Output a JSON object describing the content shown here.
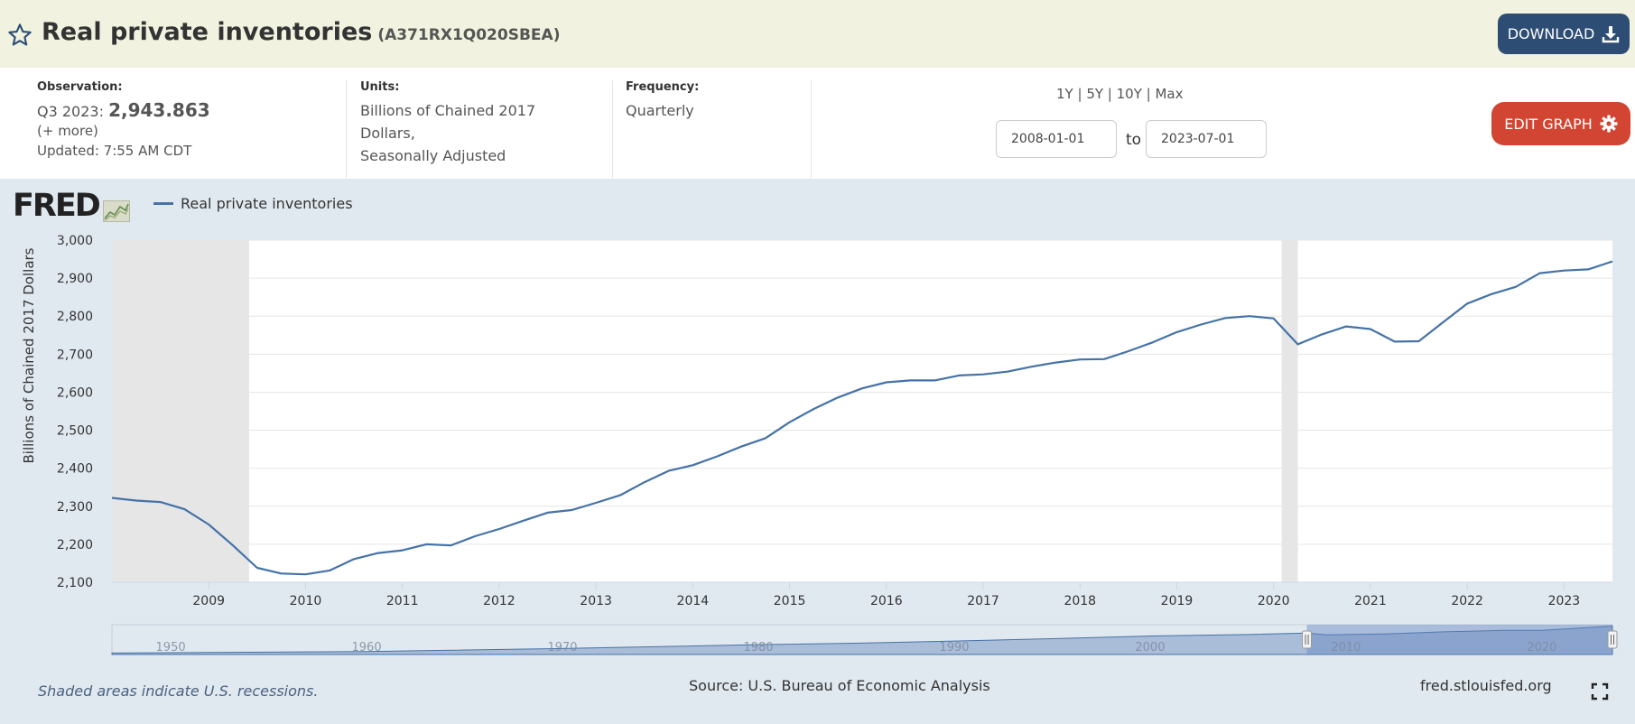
{
  "header": {
    "title": "Real private inventories",
    "series_id": "(A371RX1Q020SBEA)",
    "download_label": "DOWNLOAD",
    "star_icon": "star-outline-icon",
    "download_icon": "download-icon"
  },
  "info": {
    "observation_label": "Observation:",
    "observation_period": "Q3 2023:",
    "observation_value": "2,943.863",
    "more_label": "(+ more)",
    "updated": "Updated: 7:55 AM CDT",
    "units_label": "Units:",
    "units_line1": "Billions of Chained 2017",
    "units_line2": "Dollars,",
    "units_line3": "Seasonally Adjusted",
    "frequency_label": "Frequency:",
    "frequency_value": "Quarterly",
    "ranges": [
      "1Y",
      "5Y",
      "10Y",
      "Max"
    ],
    "start_date": "2008-01-01",
    "to_label": "to",
    "end_date": "2023-07-01",
    "edit_label": "EDIT GRAPH",
    "edit_icon": "gear-icon"
  },
  "chart_header": {
    "logo_text": "FRED",
    "legend_label": "Real private inventories"
  },
  "chart_data": {
    "type": "line",
    "ylabel": "Billions of Chained 2017 Dollars",
    "ylim": [
      2100,
      3000
    ],
    "yticks": [
      2100,
      2200,
      2300,
      2400,
      2500,
      2600,
      2700,
      2800,
      2900,
      3000
    ],
    "ytick_labels": [
      "2,100",
      "2,200",
      "2,300",
      "2,400",
      "2,500",
      "2,600",
      "2,700",
      "2,800",
      "2,900",
      "3,000"
    ],
    "xlim": [
      "2008-01-01",
      "2023-07-01"
    ],
    "xticks": [
      "2009",
      "2010",
      "2011",
      "2012",
      "2013",
      "2014",
      "2015",
      "2016",
      "2017",
      "2018",
      "2019",
      "2020",
      "2021",
      "2022",
      "2023"
    ],
    "grid": true,
    "legend_position": "top-left",
    "line_color": "#4572a7",
    "recession_color": "#e6e6e6",
    "recessions": [
      {
        "start": "2008-01-01",
        "end": "2009-06-01"
      },
      {
        "start": "2020-02-01",
        "end": "2020-04-01"
      }
    ],
    "series": [
      {
        "name": "Real private inventories",
        "x": [
          "2008-01-01",
          "2008-04-01",
          "2008-07-01",
          "2008-10-01",
          "2009-01-01",
          "2009-04-01",
          "2009-07-01",
          "2009-10-01",
          "2010-01-01",
          "2010-04-01",
          "2010-07-01",
          "2010-10-01",
          "2011-01-01",
          "2011-04-01",
          "2011-07-01",
          "2011-10-01",
          "2012-01-01",
          "2012-04-01",
          "2012-07-01",
          "2012-10-01",
          "2013-01-01",
          "2013-04-01",
          "2013-07-01",
          "2013-10-01",
          "2014-01-01",
          "2014-04-01",
          "2014-07-01",
          "2014-10-01",
          "2015-01-01",
          "2015-04-01",
          "2015-07-01",
          "2015-10-01",
          "2016-01-01",
          "2016-04-01",
          "2016-07-01",
          "2016-10-01",
          "2017-01-01",
          "2017-04-01",
          "2017-07-01",
          "2017-10-01",
          "2018-01-01",
          "2018-04-01",
          "2018-07-01",
          "2018-10-01",
          "2019-01-01",
          "2019-04-01",
          "2019-07-01",
          "2019-10-01",
          "2020-01-01",
          "2020-04-01",
          "2020-07-01",
          "2020-10-01",
          "2021-01-01",
          "2021-04-01",
          "2021-07-01",
          "2021-10-01",
          "2022-01-01",
          "2022-04-01",
          "2022-07-01",
          "2022-10-01",
          "2023-01-01",
          "2023-04-01",
          "2023-07-01"
        ],
        "values": [
          2322,
          2315,
          2311,
          2292,
          2252,
          2197,
          2138,
          2123,
          2121,
          2131,
          2161,
          2177,
          2184,
          2200,
          2197,
          2221,
          2240,
          2262,
          2283,
          2290,
          2309,
          2329,
          2363,
          2393,
          2408,
          2431,
          2457,
          2479,
          2521,
          2556,
          2586,
          2610,
          2626,
          2631,
          2631,
          2644,
          2647,
          2654,
          2667,
          2678,
          2686,
          2687,
          2708,
          2731,
          2758,
          2778,
          2795,
          2800,
          2794,
          2726,
          2752,
          2773,
          2766,
          2733,
          2734,
          2784,
          2833,
          2858,
          2877,
          2913,
          2920,
          2923,
          2943.863
        ]
      }
    ],
    "navigator": {
      "labels": [
        "1950",
        "1960",
        "1970",
        "1980",
        "1990",
        "2000",
        "2010",
        "2020"
      ],
      "points": [
        [
          1947,
          2050
        ],
        [
          1950,
          2060
        ],
        [
          1960,
          2100
        ],
        [
          1970,
          2200
        ],
        [
          1980,
          2330
        ],
        [
          1985,
          2380
        ],
        [
          1990,
          2450
        ],
        [
          1995,
          2530
        ],
        [
          2000,
          2620
        ],
        [
          2005,
          2670
        ],
        [
          2008,
          2720
        ],
        [
          2009,
          2660
        ],
        [
          2012,
          2690
        ],
        [
          2015,
          2760
        ],
        [
          2018,
          2810
        ],
        [
          2020,
          2810
        ],
        [
          2023.6,
          2950
        ]
      ],
      "selected_start": 2008.0,
      "selected_end": 2023.6
    }
  },
  "footer": {
    "recession_note": "Shaded areas indicate U.S. recessions.",
    "source": "Source: U.S. Bureau of Economic Analysis",
    "url": "fred.stlouisfed.org",
    "fullscreen_icon": "fullscreen-icon"
  }
}
